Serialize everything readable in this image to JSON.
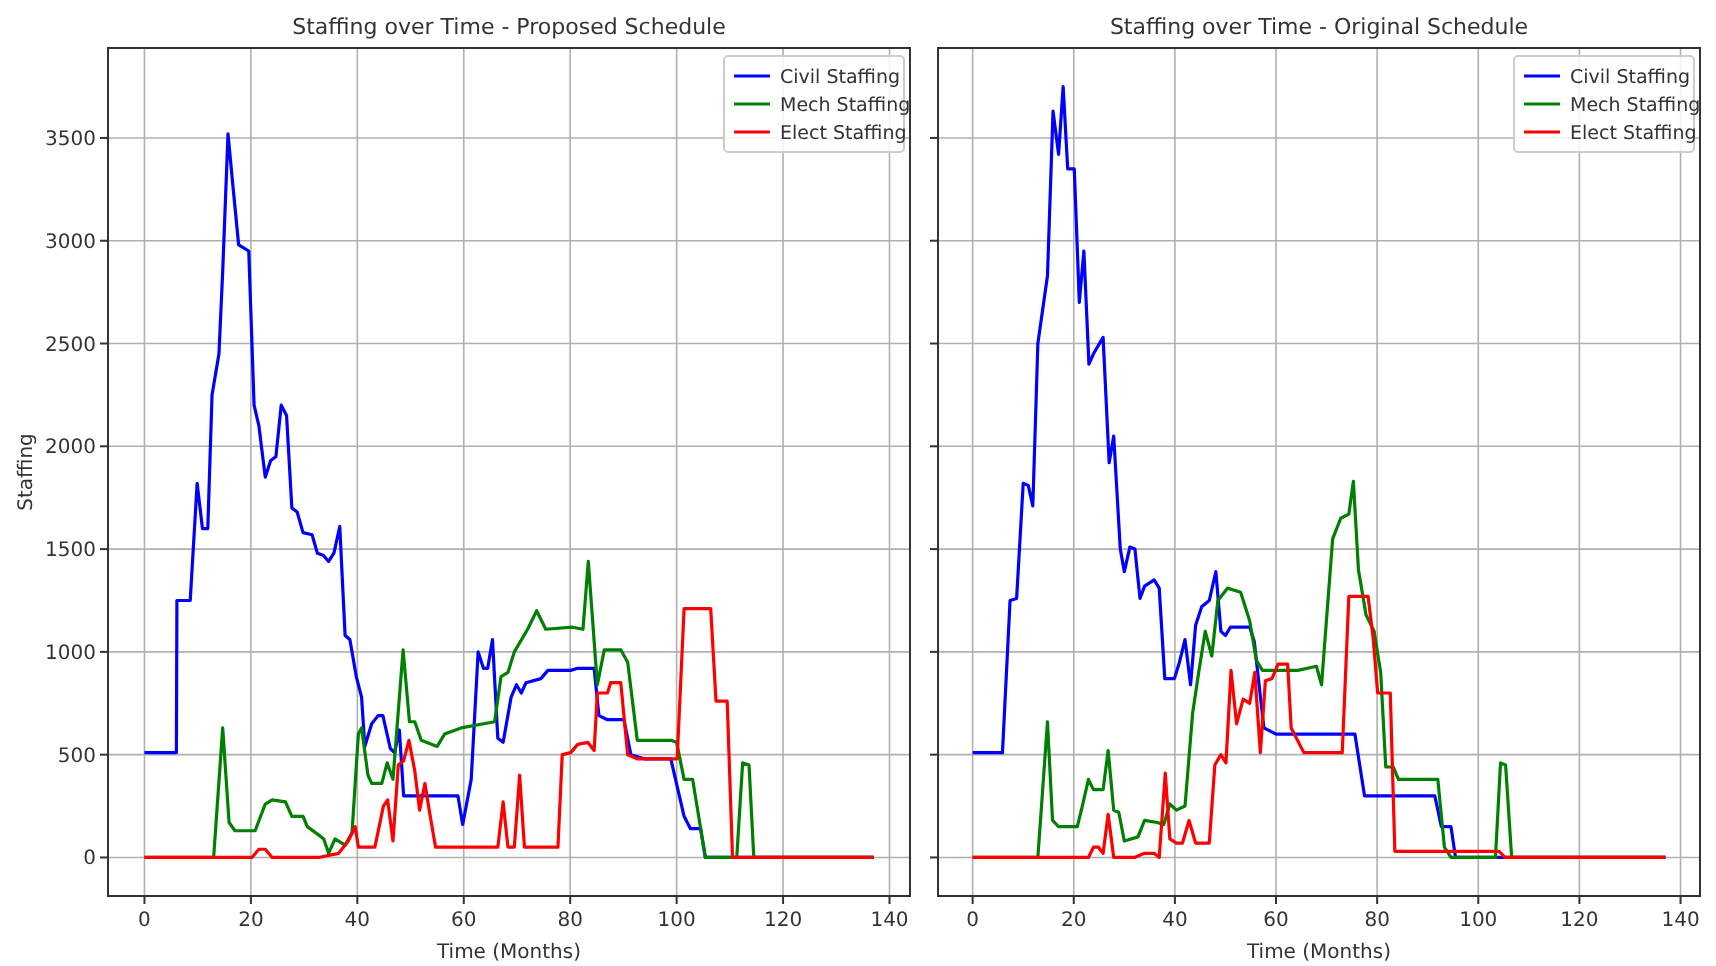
{
  "chart_data": [
    {
      "type": "line",
      "title": "Staffing over Time - Proposed Schedule",
      "xlabel": "Time (Months)",
      "ylabel": "Staffing",
      "xlim": [
        -6.85,
        143.85
      ],
      "ylim": [
        -187.5,
        3937.5
      ],
      "xticks": [
        0,
        20,
        40,
        60,
        80,
        100,
        120,
        140
      ],
      "yticks": [
        0,
        500,
        1000,
        1500,
        2000,
        2500,
        3000,
        3500
      ],
      "grid": true,
      "legend": "top right",
      "line_style": "solid",
      "marker": "none",
      "series": [
        {
          "name": "Civil Staffing",
          "color": "#0000ff",
          "x": [
            0,
            6,
            6.1,
            8.6,
            9.9,
            10.9,
            11.9,
            12.7,
            14,
            14.7,
            15.7,
            16.5,
            17.7,
            19.6,
            20.6,
            21.5,
            22.7,
            23.7,
            24.7,
            25.7,
            26.7,
            27.7,
            28.7,
            29.8,
            31.5,
            32.5,
            33.6,
            34.6,
            35.6,
            36.7,
            37.7,
            38.6,
            39.8,
            40.8,
            41.4,
            42.7,
            43.9,
            44.8,
            46.2,
            47,
            47.9,
            48.7,
            58.9,
            59.8,
            61.4,
            62.7,
            63.7,
            64.5,
            65.4,
            66.4,
            67.4,
            68.9,
            69.9,
            70.8,
            71.7,
            74.5,
            75.8,
            80.1,
            81.4,
            84.5,
            85.4,
            87,
            90.1,
            91.4,
            93.9,
            98.9,
            101.4,
            102.6,
            104.5,
            105.4,
            137
          ],
          "values": [
            510,
            510,
            1250,
            1250,
            1820,
            1600,
            1600,
            2250,
            2450,
            2850,
            3520,
            3300,
            2980,
            2950,
            2200,
            2100,
            1850,
            1930,
            1950,
            2200,
            2150,
            1700,
            1680,
            1580,
            1570,
            1480,
            1470,
            1440,
            1480,
            1610,
            1080,
            1060,
            880,
            780,
            540,
            650,
            690,
            690,
            530,
            510,
            620,
            300,
            300,
            160,
            380,
            1000,
            920,
            920,
            1060,
            580,
            560,
            780,
            840,
            800,
            850,
            870,
            910,
            910,
            920,
            920,
            690,
            670,
            670,
            500,
            480,
            480,
            200,
            140,
            140,
            0,
            0
          ]
        },
        {
          "name": "Mech Staffing",
          "color": "#008000",
          "x": [
            0,
            13,
            14.7,
            15.9,
            17,
            20.8,
            22.7,
            24,
            26.5,
            27.7,
            29.8,
            30.6,
            32.7,
            33.7,
            34.6,
            35.8,
            37.7,
            39,
            40.2,
            40.8,
            42,
            42.7,
            44.6,
            45.6,
            46.7,
            48.6,
            49.8,
            50.8,
            52,
            55,
            56.4,
            59.5,
            65.8,
            67,
            68.3,
            69.5,
            72,
            73.7,
            75.4,
            80.4,
            82.4,
            83.4,
            85.1,
            86.4,
            89.5,
            90.8,
            92.6,
            98.9,
            100,
            101.4,
            103,
            105.4,
            111.3,
            112.4,
            113.6,
            114.5,
            137
          ],
          "values": [
            0,
            0,
            630,
            170,
            130,
            130,
            260,
            280,
            270,
            200,
            200,
            150,
            110,
            90,
            20,
            90,
            60,
            120,
            600,
            630,
            400,
            360,
            360,
            460,
            380,
            1010,
            660,
            660,
            570,
            540,
            600,
            630,
            660,
            880,
            900,
            1000,
            1110,
            1200,
            1110,
            1120,
            1110,
            1440,
            840,
            1010,
            1010,
            950,
            570,
            570,
            560,
            380,
            380,
            0,
            0,
            460,
            450,
            0,
            0
          ]
        },
        {
          "name": "Elect Staffing",
          "color": "#ff0000",
          "x": [
            0,
            20.2,
            21.5,
            22.7,
            24,
            32.7,
            36.5,
            38.3,
            39.6,
            40.2,
            43.3,
            44.9,
            45.7,
            46.7,
            47.7,
            48.7,
            49.7,
            50.8,
            51.7,
            52.7,
            53.7,
            54.7,
            66.4,
            67.4,
            68.3,
            69.5,
            70.5,
            71.4,
            77.7,
            78.5,
            80.1,
            81.4,
            83.3,
            84.5,
            85.1,
            87,
            87.6,
            89.5,
            90.8,
            92.6,
            100.1,
            101.4,
            106.4,
            107.4,
            109.5,
            110.5,
            137
          ],
          "values": [
            0,
            0,
            40,
            40,
            0,
            0,
            20,
            80,
            150,
            50,
            50,
            250,
            280,
            80,
            450,
            470,
            570,
            420,
            230,
            360,
            200,
            50,
            50,
            270,
            50,
            50,
            400,
            50,
            50,
            500,
            510,
            550,
            560,
            520,
            800,
            800,
            850,
            850,
            500,
            480,
            480,
            1210,
            1210,
            760,
            760,
            0,
            0
          ]
        }
      ]
    },
    {
      "type": "line",
      "title": "Staffing over Time - Original Schedule",
      "xlabel": "Time (Months)",
      "xlim": [
        -6.85,
        143.85
      ],
      "ylim": [
        -187.5,
        3937.5
      ],
      "xticks": [
        0,
        20,
        40,
        60,
        80,
        100,
        120,
        140
      ],
      "yticks": [
        0,
        500,
        1000,
        1500,
        2000,
        2500,
        3000,
        3500
      ],
      "tick_labels": "x",
      "grid": true,
      "legend": "top right",
      "line_style": "solid",
      "marker": "none",
      "series": [
        {
          "name": "Civil Staffing",
          "color": "#0000ff",
          "x": [
            0,
            5.9,
            7.4,
            8.7,
            10,
            11,
            11.9,
            12.9,
            14.8,
            15.9,
            17,
            17.9,
            18.8,
            20.1,
            21.1,
            22,
            23,
            23.9,
            25.8,
            27,
            27.9,
            29.2,
            30,
            31.1,
            32.1,
            33.1,
            34,
            35.9,
            36.9,
            38,
            39.9,
            40.9,
            42,
            43.1,
            44.1,
            45.3,
            46.8,
            48.1,
            49.1,
            50,
            51,
            54.8,
            55.7,
            57.6,
            60,
            75.6,
            77.5,
            91.4,
            92.7,
            94.6,
            95.5,
            137
          ],
          "values": [
            510,
            510,
            1250,
            1260,
            1820,
            1810,
            1710,
            2500,
            2830,
            3630,
            3420,
            3750,
            3350,
            3350,
            2700,
            2950,
            2400,
            2450,
            2530,
            1920,
            2050,
            1500,
            1390,
            1510,
            1500,
            1260,
            1320,
            1350,
            1310,
            870,
            870,
            950,
            1060,
            840,
            1130,
            1220,
            1250,
            1390,
            1100,
            1080,
            1120,
            1120,
            1050,
            630,
            600,
            600,
            300,
            300,
            150,
            150,
            0,
            0
          ]
        },
        {
          "name": "Mech Staffing",
          "color": "#008000",
          "x": [
            0,
            12.9,
            14.8,
            15.8,
            17,
            20.7,
            21.6,
            22.9,
            23.9,
            25.8,
            26.8,
            27.9,
            28.9,
            30,
            32.7,
            34,
            36.5,
            37.8,
            39,
            40.3,
            42,
            43.5,
            44.7,
            46,
            47.3,
            48.5,
            50.4,
            53,
            54.8,
            56.1,
            57.3,
            64.3,
            68,
            69,
            71.2,
            72.8,
            74.4,
            75.3,
            76.3,
            77.8,
            79.4,
            80.7,
            81.7,
            83.2,
            84.2,
            92,
            93.3,
            94.6,
            103.4,
            104.4,
            105.4,
            106.6,
            137
          ],
          "values": [
            0,
            0,
            660,
            180,
            150,
            150,
            240,
            380,
            330,
            330,
            520,
            230,
            220,
            80,
            100,
            180,
            170,
            160,
            260,
            230,
            250,
            700,
            900,
            1100,
            980,
            1250,
            1310,
            1290,
            1150,
            960,
            910,
            910,
            930,
            840,
            1550,
            1650,
            1670,
            1830,
            1400,
            1180,
            1100,
            900,
            440,
            440,
            380,
            380,
            50,
            0,
            0,
            460,
            450,
            0,
            0
          ]
        },
        {
          "name": "Elect Staffing",
          "color": "#ff0000",
          "x": [
            0,
            22.9,
            23.9,
            24.9,
            25.8,
            26.8,
            27.9,
            32,
            34,
            35.9,
            36.9,
            38.1,
            39,
            40.3,
            41.5,
            42.8,
            44.1,
            46.8,
            47.9,
            49.1,
            50.1,
            51.1,
            52.2,
            53.5,
            54.8,
            55.8,
            56.9,
            57.9,
            59.2,
            60.4,
            62.3,
            63,
            65.5,
            73.1,
            74.4,
            78.2,
            79.2,
            80.1,
            82.6,
            83.5,
            104.1,
            105.3,
            137
          ],
          "values": [
            0,
            0,
            50,
            50,
            20,
            210,
            0,
            0,
            20,
            20,
            0,
            410,
            90,
            70,
            70,
            180,
            70,
            70,
            450,
            500,
            460,
            910,
            650,
            770,
            750,
            900,
            510,
            860,
            870,
            940,
            940,
            630,
            510,
            510,
            1270,
            1270,
            1070,
            800,
            800,
            30,
            30,
            0,
            0
          ]
        }
      ]
    }
  ]
}
